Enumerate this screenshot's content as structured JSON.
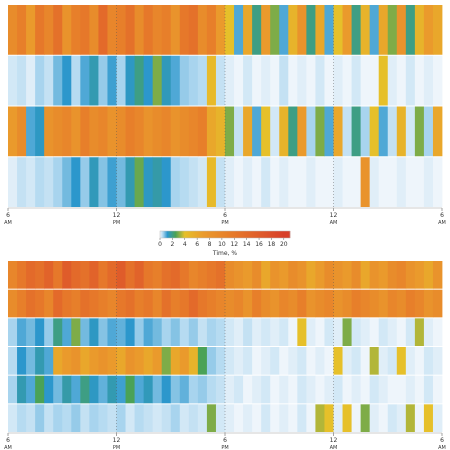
{
  "chart_data": [
    {
      "type": "heatmap",
      "xlim": [
        6,
        30
      ],
      "xticks": [
        {
          "value": 6,
          "label": "6",
          "period": "AM"
        },
        {
          "value": 12,
          "label": "12",
          "period": "PM"
        },
        {
          "value": 18,
          "label": "6",
          "period": "PM"
        },
        {
          "value": 24,
          "label": "12",
          "period": "AM"
        },
        {
          "value": 30,
          "label": "6",
          "period": "AM"
        }
      ],
      "grid": true,
      "colorscale": [
        [
          0,
          "#eef5fb"
        ],
        [
          0.5,
          "#a8d4ee"
        ],
        [
          1.2,
          "#2c97cc"
        ],
        [
          2.5,
          "#4aa257"
        ],
        [
          4,
          "#e6c02a"
        ],
        [
          7,
          "#ea9a2c"
        ],
        [
          12,
          "#e6782a"
        ],
        [
          20,
          "#d8402a"
        ]
      ],
      "colorbar": {
        "label": "Time, %",
        "lim": [
          0,
          21
        ],
        "ticks": [
          0,
          2,
          4,
          6,
          8,
          10,
          12,
          14,
          16,
          18,
          20
        ]
      },
      "rows": [
        [
          9,
          11,
          7,
          12,
          10,
          13,
          8,
          11,
          12,
          9,
          14,
          10,
          11,
          13,
          9,
          12,
          10,
          11,
          8,
          12,
          13,
          9,
          11,
          7,
          4,
          1,
          6,
          2,
          7,
          3,
          1,
          5,
          8,
          2,
          6,
          1,
          4,
          7,
          2,
          5,
          1,
          6,
          3,
          8,
          2,
          5,
          7,
          6
        ],
        [
          0.2,
          0.3,
          0.1,
          0.5,
          0.3,
          0.8,
          1.2,
          0.4,
          1,
          1.5,
          0.6,
          1.1,
          0.5,
          1.3,
          2,
          1.2,
          3,
          1.4,
          1,
          0.6,
          0.5,
          0.4,
          4.5,
          0.3,
          0.1,
          0,
          0.2,
          0,
          0.1,
          0,
          0.3,
          0,
          0.1,
          0,
          0.2,
          0,
          0.1,
          0,
          0.2,
          0,
          0,
          4,
          0.1,
          0,
          0.2,
          0,
          0.1,
          0
        ],
        [
          7,
          9,
          1,
          1.3,
          8,
          9,
          10,
          8,
          11,
          9,
          10,
          8,
          9,
          11,
          10,
          8,
          9,
          10,
          8,
          9,
          10,
          11,
          6,
          5,
          3,
          0.3,
          6,
          1,
          4,
          0.2,
          5,
          2,
          7,
          0.5,
          3,
          1,
          6,
          0.3,
          2,
          0.5,
          4,
          1,
          0.3,
          5,
          0.2,
          3,
          0.5,
          6
        ],
        [
          0.1,
          0.3,
          0.2,
          0.4,
          0.3,
          0.5,
          0.8,
          1.2,
          0.6,
          1.4,
          0.7,
          1.1,
          0.8,
          1.5,
          2.8,
          1.3,
          1.6,
          1.2,
          0.5,
          0.4,
          0.3,
          0.2,
          4.5,
          0.3,
          0.1,
          0,
          0.1,
          0,
          0.2,
          0,
          0.1,
          0,
          0,
          0.1,
          0,
          0,
          0.1,
          0,
          0,
          8,
          0.1,
          0,
          0,
          0.1,
          0,
          0,
          0.1,
          0
        ]
      ]
    },
    {
      "type": "heatmap",
      "xlim": [
        6,
        30
      ],
      "xticks": [
        {
          "value": 6,
          "label": "6",
          "period": "AM"
        },
        {
          "value": 12,
          "label": "12",
          "period": "PM"
        },
        {
          "value": 18,
          "label": "6",
          "period": "PM"
        },
        {
          "value": 24,
          "label": "12",
          "period": "AM"
        },
        {
          "value": 30,
          "label": "6",
          "period": "AM"
        }
      ],
      "grid": true,
      "rows": [
        [
          10,
          12,
          14,
          13,
          15,
          12,
          16,
          14,
          13,
          15,
          12,
          14,
          16,
          13,
          15,
          12,
          11,
          13,
          14,
          12,
          10,
          11,
          12,
          13,
          9,
          8,
          7,
          9,
          6,
          8,
          7,
          9,
          8,
          6,
          7,
          9,
          8,
          7,
          9,
          6,
          8,
          7,
          9,
          10,
          8,
          7,
          6,
          8
        ],
        [
          9,
          11,
          13,
          12,
          10,
          14,
          12,
          11,
          13,
          12,
          11,
          10,
          12,
          13,
          11,
          12,
          10,
          13,
          11,
          12,
          14,
          12,
          11,
          10,
          9,
          10,
          8,
          11,
          9,
          8,
          10,
          9,
          11,
          8,
          9,
          10,
          8,
          9,
          11,
          10,
          9,
          8,
          10,
          9,
          11,
          10,
          8,
          9
        ],
        [
          0.5,
          1,
          0.8,
          1.2,
          0.6,
          2,
          1,
          3,
          0.8,
          1.3,
          0.7,
          1,
          0.9,
          1.2,
          0.6,
          1,
          0.8,
          0.5,
          0.7,
          0.4,
          0.6,
          0.3,
          0.5,
          0.4,
          0.2,
          0.1,
          0.3,
          0.1,
          0.2,
          0.1,
          0.2,
          0,
          4,
          0.1,
          0,
          0.2,
          0.1,
          3,
          0.2,
          0.1,
          0,
          0.2,
          0.1,
          0,
          0.2,
          3.5,
          0.1,
          0
        ],
        [
          0.4,
          1.2,
          0.8,
          1.5,
          1,
          6,
          7,
          8,
          6,
          7,
          8,
          7,
          6,
          8,
          7,
          6,
          7,
          3,
          6,
          7,
          5,
          2.5,
          0.6,
          0.4,
          0.2,
          0.1,
          0.2,
          0,
          0.1,
          0.2,
          0,
          0.1,
          0.2,
          0,
          0.1,
          0,
          4,
          0.1,
          0.2,
          0,
          3.5,
          0.1,
          0.2,
          4,
          0.1,
          0,
          0.2,
          0.1
        ],
        [
          0.5,
          1.5,
          1,
          2.5,
          1.2,
          0.8,
          1.6,
          1,
          2,
          1.3,
          0.9,
          1.5,
          1.1,
          2.5,
          1,
          1.4,
          0.8,
          1.2,
          0.7,
          0.9,
          0.5,
          0.6,
          0.4,
          0.3,
          0.1,
          0.2,
          0,
          0.1,
          0.2,
          0,
          0.1,
          0,
          0.2,
          0.1,
          0,
          0.1,
          0.2,
          0,
          0.1,
          0,
          0.2,
          0.1,
          0,
          0,
          0.1,
          0,
          0.2,
          0
        ],
        [
          0.2,
          0.4,
          0.3,
          0.6,
          0.3,
          0.5,
          0.4,
          0.6,
          0.3,
          0.5,
          0.4,
          0.3,
          0.5,
          0.2,
          0.4,
          0.3,
          0.2,
          0.3,
          0.5,
          0.2,
          0.3,
          0.2,
          3,
          0.2,
          0.1,
          0,
          0.1,
          0,
          0.2,
          0,
          0.1,
          0,
          0.2,
          0,
          3.5,
          4,
          0.1,
          4,
          0,
          3,
          0.1,
          0,
          0.2,
          0.1,
          3.5,
          0,
          4,
          0.1
        ]
      ]
    }
  ]
}
